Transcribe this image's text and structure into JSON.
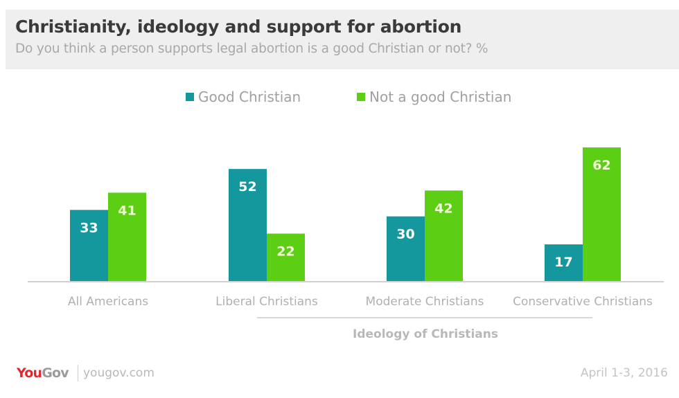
{
  "header": {
    "title": "Christianity, ideology and support for abortion",
    "subtitle": "Do you think a person supports legal abortion is a good Christian or not? %"
  },
  "legend": [
    {
      "label": "Good Christian",
      "color": "#14989e"
    },
    {
      "label": "Not a good Christian",
      "color": "#5ccf14"
    }
  ],
  "footer": {
    "logo_you": "You",
    "logo_gov": "Gov",
    "site": "yougov.com",
    "date": "April 1-3, 2016"
  },
  "chart_data": {
    "type": "bar",
    "title": "Christianity, ideology and support for abortion",
    "subtitle": "Do you think a person supports legal abortion is a good Christian or not? %",
    "xlabel": "",
    "ylabel": "",
    "ylim": [
      0,
      62
    ],
    "grid": false,
    "legend_position": "top-center",
    "categories": [
      "All Americans",
      "Liberal Christians",
      "Moderate Christians",
      "Conservative Christians"
    ],
    "series": [
      {
        "name": "Good Christian",
        "color": "#14989e",
        "values": [
          33,
          52,
          30,
          17
        ]
      },
      {
        "name": "Not a good Christian",
        "color": "#5ccf14",
        "values": [
          41,
          22,
          42,
          62
        ]
      }
    ],
    "group_annotation": {
      "label": "Ideology of Christians",
      "spans": [
        "Liberal Christians",
        "Moderate Christians",
        "Conservative Christians"
      ]
    },
    "value_label_colors": {
      "Good Christian": "#ffffff",
      "Not a good Christian": "#f4f9d8"
    }
  }
}
